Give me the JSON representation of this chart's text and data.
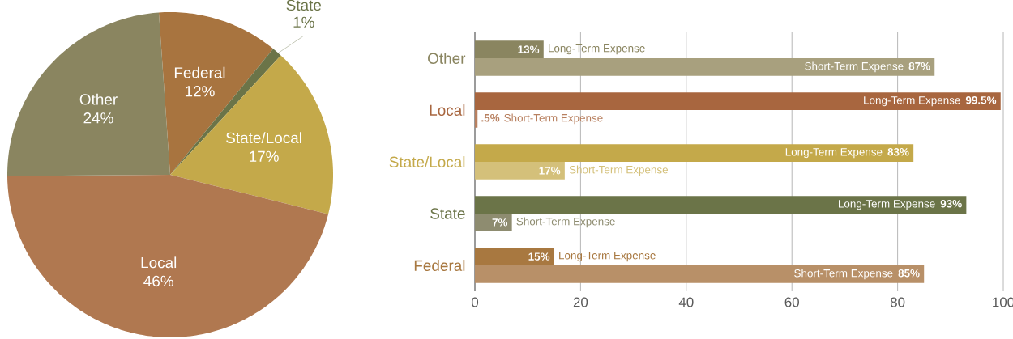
{
  "chart_data": [
    {
      "type": "pie",
      "categories": [
        "Federal",
        "State",
        "State/Local",
        "Local",
        "Other"
      ],
      "values": [
        12,
        1,
        17,
        46,
        24
      ],
      "colors": [
        "#a8743f",
        "#6b7448",
        "#c4a94a",
        "#b07850",
        "#8a8560"
      ],
      "value_labels": [
        "12%",
        "1%",
        "17%",
        "46%",
        "24%"
      ]
    },
    {
      "type": "bar",
      "orientation": "horizontal",
      "categories": [
        "Other",
        "Local",
        "State/Local",
        "State",
        "Federal"
      ],
      "series": [
        {
          "name": "Long-Term Expense",
          "colors": [
            "#8a8560",
            "#a8663f",
            "#c4a94a",
            "#6b7448",
            "#a87840"
          ],
          "values": [
            13,
            99.5,
            83,
            93,
            15
          ],
          "value_labels": [
            "13%",
            "99.5%",
            "83%",
            "93%",
            "15%"
          ]
        },
        {
          "name": "Short-Term Expense",
          "colors": [
            "#a8a07e",
            "#b88060",
            "#d4c07a",
            "#8e8c70",
            "#b89068"
          ],
          "values": [
            87,
            0.5,
            17,
            7,
            85
          ],
          "value_labels": [
            "87%",
            ".5%",
            "17%",
            "7%",
            "85%"
          ]
        }
      ],
      "xlim": [
        0,
        100
      ],
      "xticks": [
        0,
        20,
        40,
        60,
        80,
        100
      ],
      "grid": "x"
    }
  ]
}
